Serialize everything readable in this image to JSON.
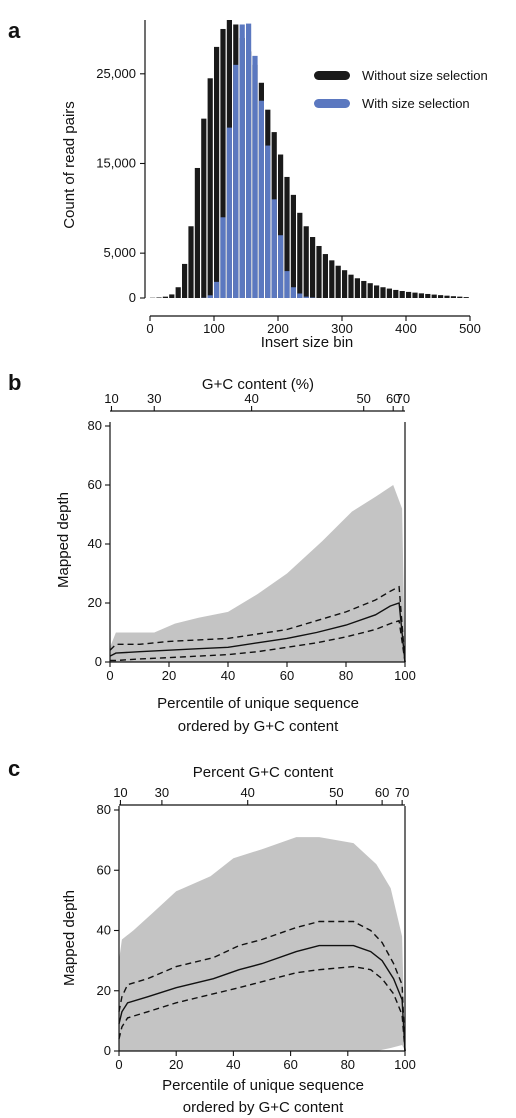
{
  "panels": [
    {
      "letter": "a"
    },
    {
      "letter": "b"
    },
    {
      "letter": "c"
    }
  ],
  "chart_data": [
    {
      "id": "a",
      "type": "bar",
      "xlabel": "Insert size bin",
      "ylabel": "Count of read pairs",
      "xlim": [
        0,
        500
      ],
      "ylim": [
        0,
        31000
      ],
      "xticks": [
        0,
        100,
        200,
        300,
        400,
        500
      ],
      "yticks": [
        0,
        5000,
        15000,
        25000
      ],
      "ytick_labels": [
        "0",
        "5,000",
        "15,000",
        "25,000"
      ],
      "bin_width": 10,
      "x": [
        5,
        15,
        25,
        35,
        45,
        55,
        65,
        75,
        85,
        95,
        105,
        115,
        125,
        135,
        145,
        155,
        165,
        175,
        185,
        195,
        205,
        215,
        225,
        235,
        245,
        255,
        265,
        275,
        285,
        295,
        305,
        315,
        325,
        335,
        345,
        355,
        365,
        375,
        385,
        395,
        405,
        415,
        425,
        435,
        445,
        455,
        465,
        475,
        485,
        495
      ],
      "series": [
        {
          "name": "Without size selection",
          "color": "#1a1a1a",
          "values": [
            30,
            60,
            150,
            400,
            1200,
            3800,
            8000,
            14500,
            20000,
            24500,
            28000,
            30000,
            31000,
            30500,
            29000,
            27500,
            26000,
            24000,
            21000,
            18500,
            16000,
            13500,
            11500,
            9500,
            8000,
            6800,
            5800,
            4900,
            4200,
            3600,
            3100,
            2600,
            2200,
            1900,
            1650,
            1400,
            1200,
            1050,
            900,
            780,
            680,
            600,
            520,
            450,
            380,
            320,
            260,
            200,
            150,
            100
          ]
        },
        {
          "name": "With size selection",
          "color": "#5b78c0",
          "values": [
            0,
            0,
            0,
            0,
            0,
            0,
            0,
            0,
            30,
            300,
            1800,
            9000,
            19000,
            26000,
            30500,
            30600,
            27000,
            22000,
            17000,
            11000,
            7000,
            3000,
            1200,
            500,
            150,
            50,
            0,
            0,
            0,
            0,
            0,
            0,
            0,
            0,
            0,
            0,
            0,
            0,
            0,
            0,
            0,
            0,
            0,
            0,
            0,
            0,
            0,
            0,
            0,
            0
          ]
        }
      ],
      "legend": {
        "position": "top-right",
        "entries": [
          "Without size selection",
          "With size selection"
        ]
      }
    },
    {
      "id": "b",
      "type": "line",
      "xlabel": "Percentile of unique sequence",
      "xlabel2": "ordered by G+C content",
      "ylabel": "Mapped depth",
      "top_axis_label": "G+C content (%)",
      "xlim": [
        0,
        100
      ],
      "ylim": [
        0,
        80
      ],
      "xticks": [
        0,
        20,
        40,
        60,
        80,
        100
      ],
      "yticks": [
        0,
        20,
        40,
        60,
        80
      ],
      "top_ticks": [
        {
          "label": "10",
          "x": 0.5
        },
        {
          "label": "30",
          "x": 15
        },
        {
          "label": "40",
          "x": 48
        },
        {
          "label": "50",
          "x": 86
        },
        {
          "label": "60",
          "x": 96
        },
        {
          "label": "70",
          "x": 99.3
        }
      ],
      "range_band": {
        "x": [
          0,
          2,
          5,
          15,
          22,
          30,
          40,
          50,
          60,
          72,
          82,
          90,
          96,
          99,
          100
        ],
        "upper": [
          5,
          10,
          10,
          10,
          13,
          15,
          17,
          23,
          30,
          41,
          51,
          56,
          60,
          52,
          0
        ],
        "lower": [
          0,
          0,
          0,
          0,
          0,
          0,
          0,
          0,
          0,
          0,
          0,
          0,
          0,
          0,
          0
        ]
      },
      "series": [
        {
          "style": "solid",
          "x": [
            0,
            2,
            10,
            20,
            30,
            40,
            50,
            60,
            70,
            80,
            90,
            95,
            98,
            100
          ],
          "y": [
            2,
            3,
            3.5,
            4,
            4.5,
            5,
            6.5,
            8,
            10,
            12.5,
            16,
            19,
            20,
            0
          ]
        },
        {
          "style": "dashed",
          "x": [
            0,
            2,
            10,
            20,
            30,
            40,
            50,
            60,
            70,
            80,
            90,
            95,
            98,
            100
          ],
          "y": [
            4,
            6,
            6,
            7,
            7.5,
            8,
            9.5,
            11,
            14,
            17,
            21,
            24,
            25.5,
            0
          ]
        },
        {
          "style": "dashed",
          "x": [
            0,
            2,
            10,
            20,
            30,
            40,
            50,
            60,
            70,
            80,
            90,
            95,
            98,
            100
          ],
          "y": [
            0.5,
            0.5,
            1,
            1.5,
            2,
            2.5,
            3.5,
            5,
            6.5,
            8.5,
            11,
            13,
            14,
            0
          ]
        }
      ]
    },
    {
      "id": "c",
      "type": "line",
      "xlabel": "Percentile of unique sequence",
      "xlabel2": "ordered by G+C content",
      "ylabel": "Mapped depth",
      "top_axis_label": "Percent G+C content",
      "xlim": [
        0,
        100
      ],
      "ylim": [
        0,
        80
      ],
      "xticks": [
        0,
        20,
        40,
        60,
        80,
        100
      ],
      "yticks": [
        0,
        20,
        40,
        60,
        80
      ],
      "top_ticks": [
        {
          "label": "10",
          "x": 0.5
        },
        {
          "label": "30",
          "x": 15
        },
        {
          "label": "40",
          "x": 45
        },
        {
          "label": "50",
          "x": 76
        },
        {
          "label": "60",
          "x": 92
        },
        {
          "label": "70",
          "x": 99
        }
      ],
      "range_band": {
        "x": [
          0,
          1,
          5,
          12,
          20,
          32,
          40,
          50,
          62,
          70,
          82,
          90,
          95,
          99,
          100
        ],
        "upper": [
          30,
          37,
          40,
          46,
          53,
          58,
          64,
          67,
          71,
          71,
          69,
          62,
          54,
          38,
          0
        ],
        "lower": [
          0,
          0,
          0,
          0,
          0,
          0,
          0,
          0,
          0,
          0,
          0,
          0,
          1,
          2,
          0
        ]
      },
      "series": [
        {
          "style": "solid",
          "x": [
            0,
            1,
            3,
            10,
            20,
            33,
            42,
            50,
            62,
            70,
            82,
            88,
            92,
            96,
            99,
            100
          ],
          "y": [
            9,
            13,
            16,
            18,
            21,
            24,
            27,
            29,
            33,
            35,
            35,
            33,
            30,
            24,
            17,
            0
          ]
        },
        {
          "style": "dashed",
          "x": [
            0,
            1,
            3,
            10,
            20,
            33,
            42,
            50,
            62,
            70,
            82,
            88,
            92,
            96,
            99,
            100
          ],
          "y": [
            13,
            18,
            22,
            24,
            28,
            31,
            35,
            37,
            41,
            43,
            43,
            40,
            36,
            29,
            22,
            0
          ]
        },
        {
          "style": "dashed",
          "x": [
            0,
            1,
            3,
            10,
            20,
            33,
            42,
            50,
            62,
            70,
            82,
            88,
            92,
            96,
            99,
            100
          ],
          "y": [
            4,
            8,
            11,
            13,
            16,
            19,
            21,
            23,
            26,
            27,
            28,
            27,
            24,
            19,
            12,
            0
          ]
        }
      ]
    }
  ]
}
